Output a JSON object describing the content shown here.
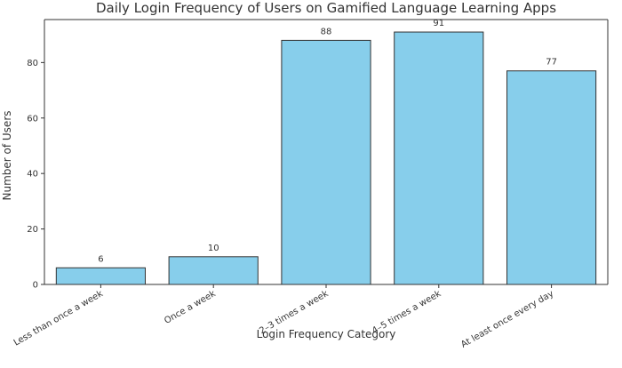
{
  "chart_data": {
    "type": "bar",
    "title": "Daily Login Frequency of Users on Gamified Language Learning Apps",
    "xlabel": "Login Frequency Category",
    "ylabel": "Number of Users",
    "categories": [
      "Less than once a week",
      "Once a week",
      "2–3 times a week",
      "4–5 times a week",
      "At least once every day"
    ],
    "values": [
      6,
      10,
      88,
      91,
      77
    ],
    "data_labels": [
      "6",
      "10",
      "88",
      "91",
      "77"
    ],
    "ylim": [
      0,
      95.5
    ],
    "yticks": [
      0,
      20,
      40,
      60,
      80
    ],
    "ytick_labels": [
      "0",
      "20",
      "40",
      "60",
      "80"
    ],
    "grid": false,
    "legend": "none",
    "colors": {
      "bar_fill": "#87CEEB",
      "bar_edge": "#333333",
      "axis": "#333333",
      "text": "#333333",
      "background": "#ffffff"
    }
  }
}
